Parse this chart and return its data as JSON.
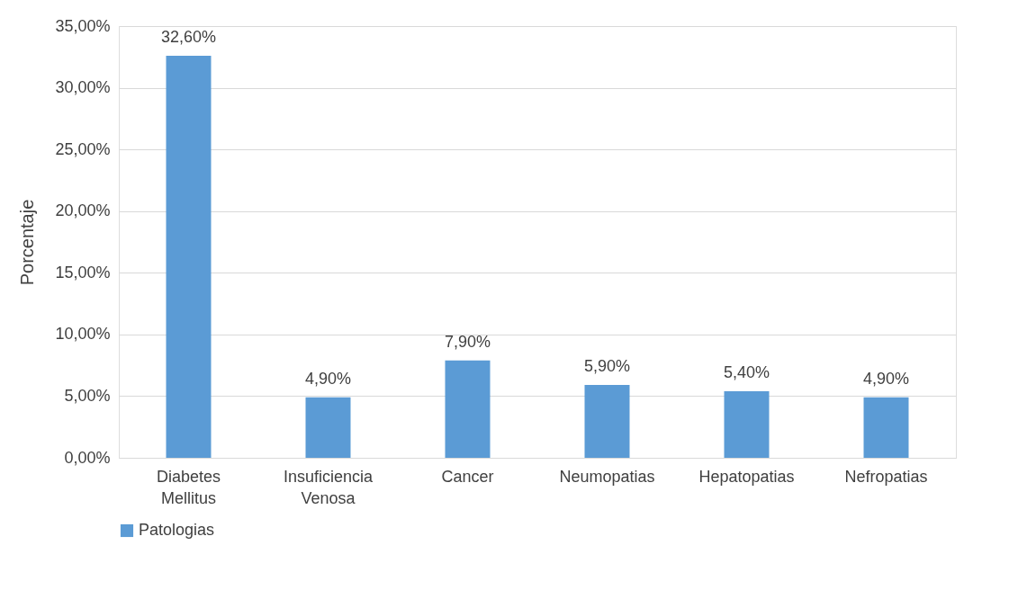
{
  "chart_data": {
    "type": "bar",
    "ylabel": "Porcentaje",
    "categories": [
      "Diabetes Mellitus",
      "Insuficiencia Venosa",
      "Cancer",
      "Neumopatias",
      "Hepatopatias",
      "Nefropatias"
    ],
    "series": [
      {
        "name": "Patologias",
        "color": "#5b9bd5",
        "values": [
          32.6,
          4.9,
          7.9,
          5.9,
          5.4,
          4.9
        ],
        "value_labels": [
          "32,60%",
          "4,90%",
          "7,90%",
          "5,90%",
          "5,40%",
          "4,90%"
        ]
      }
    ],
    "ylim": [
      0,
      35
    ],
    "yticks": [
      {
        "value": 0,
        "label": "0,00%"
      },
      {
        "value": 5,
        "label": "5,00%"
      },
      {
        "value": 10,
        "label": "10,00%"
      },
      {
        "value": 15,
        "label": "15,00%"
      },
      {
        "value": 20,
        "label": "20,00%"
      },
      {
        "value": 25,
        "label": "25,00%"
      },
      {
        "value": 30,
        "label": "30,00%"
      },
      {
        "value": 35,
        "label": "35,00%"
      }
    ],
    "grid": "y",
    "legend": "bottom"
  }
}
